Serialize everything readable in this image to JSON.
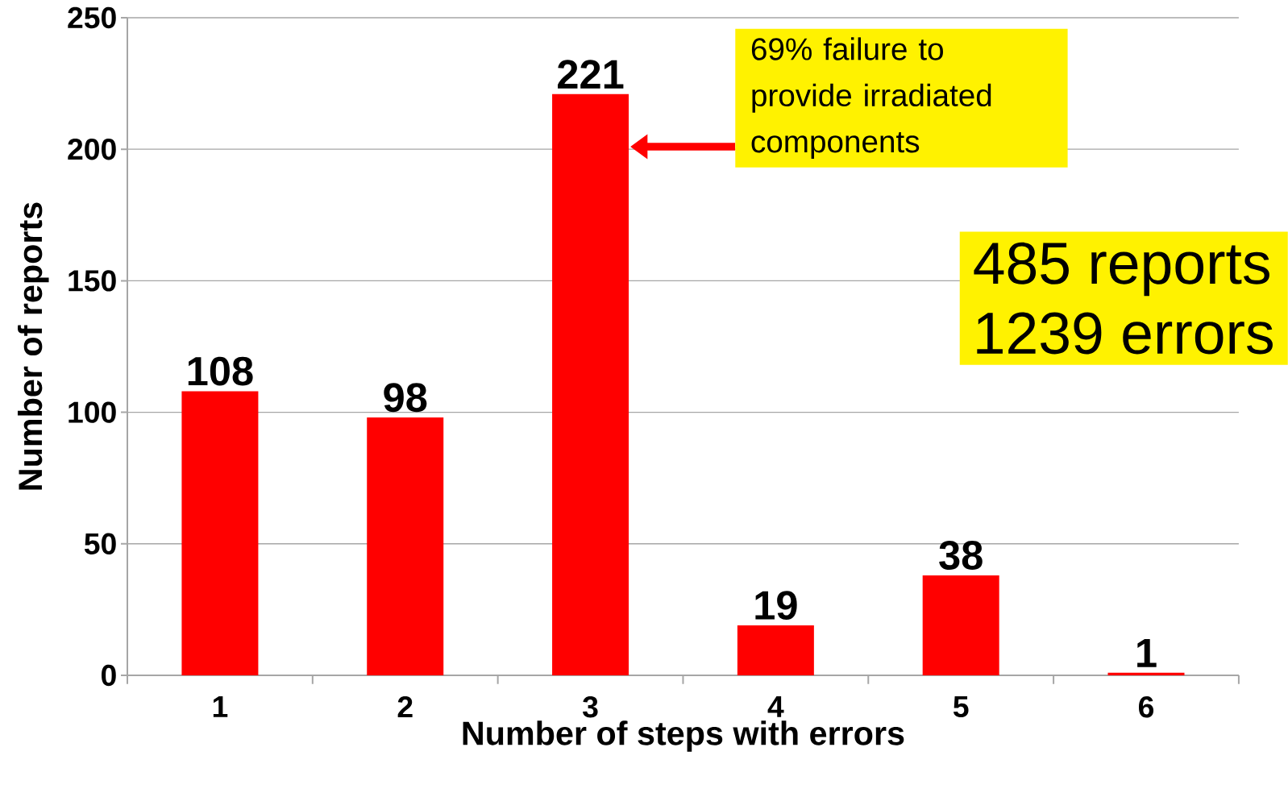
{
  "chart_data": {
    "type": "bar",
    "xlabel": "Number of steps with errors",
    "ylabel": "Number of reports",
    "categories": [
      "1",
      "2",
      "3",
      "4",
      "5",
      "6"
    ],
    "values": [
      108,
      98,
      221,
      19,
      38,
      1
    ],
    "color": "#ff0000",
    "data_labels": true,
    "ylim": [
      0,
      250
    ],
    "yticks": [
      0,
      50,
      100,
      150,
      200,
      250
    ],
    "grid": "y",
    "annotations": [
      "69% failure to provide irradiated components",
      "485 reports",
      "1239 errors"
    ]
  }
}
